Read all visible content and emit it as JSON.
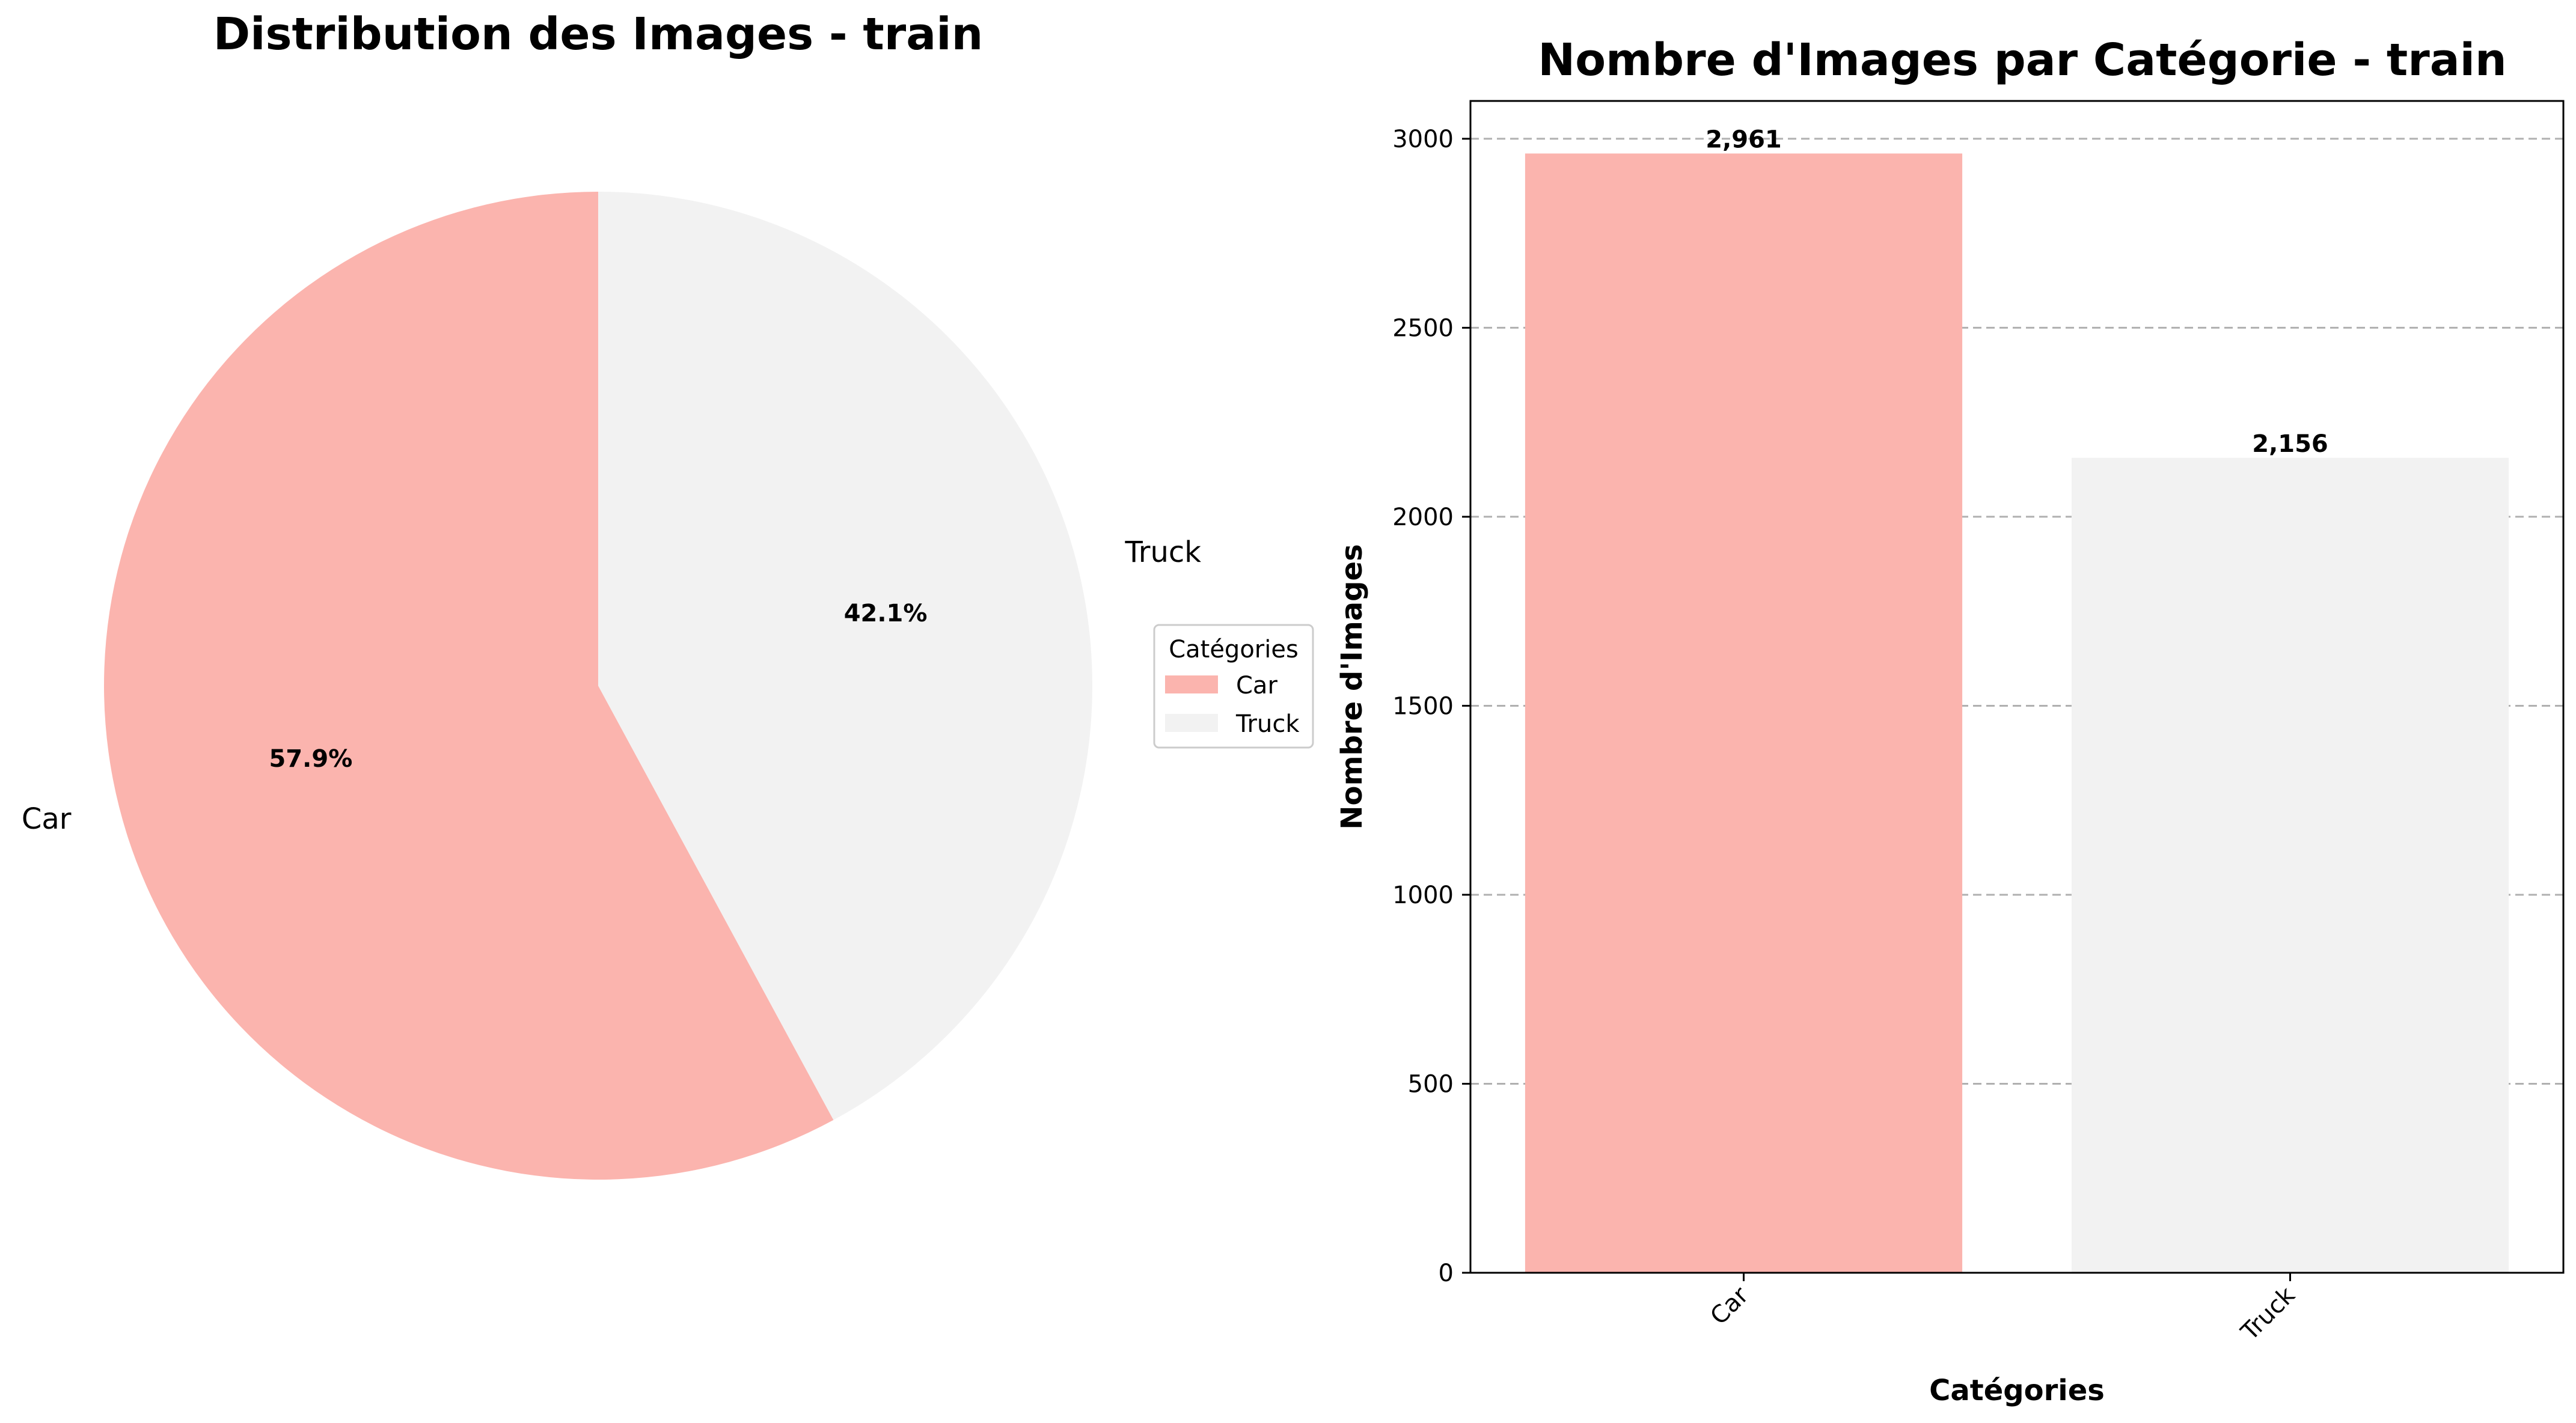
{
  "colors": {
    "car": "#fbb4ae",
    "truck": "#f2f2f2",
    "grid": "#b0b0b0",
    "text": "#000000"
  },
  "chart_data": [
    {
      "type": "pie",
      "title": "Distribution des Images - train",
      "categories": [
        "Car",
        "Truck"
      ],
      "values": [
        57.9,
        42.1
      ],
      "value_labels": [
        "57.9%",
        "42.1%"
      ],
      "start_angle_deg": 90,
      "direction": "counterclockwise",
      "legend": {
        "title": "Catégories",
        "entries": [
          "Car",
          "Truck"
        ],
        "placement": "right"
      }
    },
    {
      "type": "bar",
      "title": "Nombre d'Images par Catégorie - train",
      "xlabel": "Catégories",
      "ylabel": "Nombre d'Images",
      "categories": [
        "Car",
        "Truck"
      ],
      "values": [
        2961,
        2156
      ],
      "value_labels": [
        "2,961",
        "2,156"
      ],
      "ylim": [
        0,
        3100
      ],
      "yticks": [
        0,
        500,
        1000,
        1500,
        2000,
        2500,
        3000
      ],
      "grid": "y-dashed"
    }
  ]
}
